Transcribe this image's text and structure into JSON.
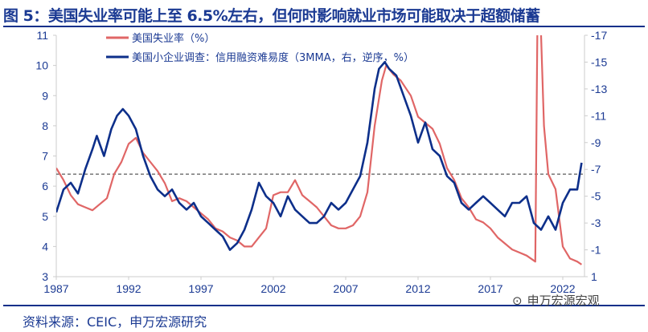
{
  "title": "图 5：美国失业率可能上至 6.5%左右，但何时影响就业市场可能取决于超额储蓄",
  "source": "资料来源：CEIC，申万宏源研究",
  "watermark": "申万宏源宏观",
  "colors": {
    "unemployment": "#e06666",
    "nfib": "#0d2f8a",
    "title": "#1b3a93"
  },
  "chart_data": {
    "type": "line",
    "xlim": [
      1987,
      2023.5
    ],
    "x_ticks": [
      "1987",
      "1992",
      "1997",
      "2002",
      "2007",
      "2012",
      "2017",
      "2022"
    ],
    "left_axis": {
      "ylim": [
        3,
        11
      ],
      "ticks": [
        "3",
        "4",
        "5",
        "6",
        "7",
        "8",
        "9",
        "10",
        "11"
      ]
    },
    "right_axis": {
      "ylim": [
        1,
        -17
      ],
      "reversed": true,
      "ticks": [
        "1",
        "-1",
        "-3",
        "-5",
        "-7",
        "-9",
        "-11",
        "-13",
        "-15",
        "-17"
      ]
    },
    "reference_line": {
      "axis": "left",
      "value": 6.4,
      "style": "dashed"
    },
    "series": [
      {
        "name": "美国失业率（%）",
        "axis": "left",
        "x": [
          1987,
          1987.5,
          1988,
          1988.5,
          1989,
          1989.5,
          1990,
          1990.5,
          1991,
          1991.5,
          1992,
          1992.5,
          1993,
          1993.5,
          1994,
          1994.5,
          1995,
          1995.5,
          1996,
          1996.5,
          1997,
          1997.5,
          1998,
          1998.5,
          1999,
          1999.5,
          2000,
          2000.5,
          2001,
          2001.5,
          2002,
          2002.5,
          2003,
          2003.5,
          2004,
          2004.5,
          2005,
          2005.5,
          2006,
          2006.5,
          2007,
          2007.5,
          2008,
          2008.5,
          2009,
          2009.5,
          2009.8,
          2010.3,
          2010.8,
          2011.5,
          2012,
          2012.5,
          2013,
          2013.5,
          2014,
          2014.5,
          2015,
          2015.5,
          2016,
          2016.5,
          2017,
          2017.5,
          2018,
          2018.5,
          2019,
          2019.5,
          2020.1,
          2020.25,
          2020.3,
          2020.5,
          2020.7,
          2021,
          2021.5,
          2022,
          2022.5,
          2023,
          2023.3
        ],
        "values": [
          6.6,
          6.2,
          5.7,
          5.4,
          5.3,
          5.2,
          5.4,
          5.6,
          6.4,
          6.8,
          7.4,
          7.6,
          7.1,
          6.8,
          6.5,
          6.1,
          5.5,
          5.6,
          5.5,
          5.3,
          5.1,
          4.9,
          4.6,
          4.5,
          4.3,
          4.2,
          4.0,
          4.0,
          4.3,
          4.6,
          5.7,
          5.8,
          5.8,
          6.2,
          5.7,
          5.5,
          5.3,
          5.0,
          4.7,
          4.6,
          4.6,
          4.7,
          5.0,
          5.8,
          8.0,
          9.5,
          10.0,
          9.7,
          9.5,
          9.0,
          8.3,
          8.1,
          7.9,
          7.4,
          6.6,
          6.2,
          5.6,
          5.3,
          4.9,
          4.8,
          4.6,
          4.3,
          4.1,
          3.9,
          3.8,
          3.7,
          3.5,
          11.5,
          14.7,
          11.0,
          8.0,
          6.4,
          5.9,
          4.0,
          3.6,
          3.5,
          3.4
        ]
      },
      {
        "name": "美国小企业调查：信用融资难易度（3MMA，右，逆序，%）",
        "axis": "right",
        "x": [
          1987,
          1987.5,
          1988,
          1988.5,
          1989,
          1989.5,
          1989.8,
          1990.3,
          1990.8,
          1991.2,
          1991.6,
          1992,
          1992.5,
          1993,
          1993.5,
          1994,
          1994.5,
          1995,
          1995.5,
          1996,
          1996.5,
          1997,
          1997.5,
          1998,
          1998.5,
          1999,
          1999.5,
          2000,
          2000.5,
          2001,
          2001.5,
          2002,
          2002.5,
          2003,
          2003.5,
          2004,
          2004.5,
          2005,
          2005.5,
          2006,
          2006.5,
          2007,
          2007.5,
          2008,
          2008.5,
          2009,
          2009.3,
          2009.7,
          2010,
          2010.5,
          2011,
          2011.5,
          2012,
          2012.5,
          2013,
          2013.5,
          2014,
          2014.5,
          2015,
          2015.5,
          2016,
          2016.5,
          2017,
          2017.5,
          2018,
          2018.5,
          2019,
          2019.5,
          2020,
          2020.5,
          2021,
          2021.5,
          2022,
          2022.5,
          2023,
          2023.3
        ],
        "values": [
          -3.8,
          -5.5,
          -6.0,
          -5.2,
          -7.0,
          -8.5,
          -9.5,
          -8.0,
          -10.0,
          -11.0,
          -11.5,
          -11.0,
          -10.0,
          -8.0,
          -6.5,
          -5.5,
          -5.0,
          -5.5,
          -4.5,
          -4.0,
          -4.5,
          -3.5,
          -3.0,
          -2.5,
          -2.0,
          -1.0,
          -1.5,
          -2.5,
          -4.0,
          -6.0,
          -5.0,
          -4.5,
          -3.5,
          -5.0,
          -4.0,
          -3.5,
          -3.0,
          -3.0,
          -3.5,
          -4.5,
          -4.0,
          -4.5,
          -5.5,
          -6.5,
          -9.0,
          -13.0,
          -14.5,
          -15.0,
          -14.5,
          -14.0,
          -12.5,
          -11.0,
          -9.0,
          -10.5,
          -8.5,
          -8.0,
          -6.5,
          -6.0,
          -4.5,
          -4.0,
          -4.5,
          -5.0,
          -4.5,
          -4.0,
          -3.5,
          -4.5,
          -4.5,
          -5.0,
          -3.0,
          -2.5,
          -3.5,
          -2.5,
          -4.5,
          -5.5,
          -5.5,
          -7.5
        ]
      }
    ]
  }
}
